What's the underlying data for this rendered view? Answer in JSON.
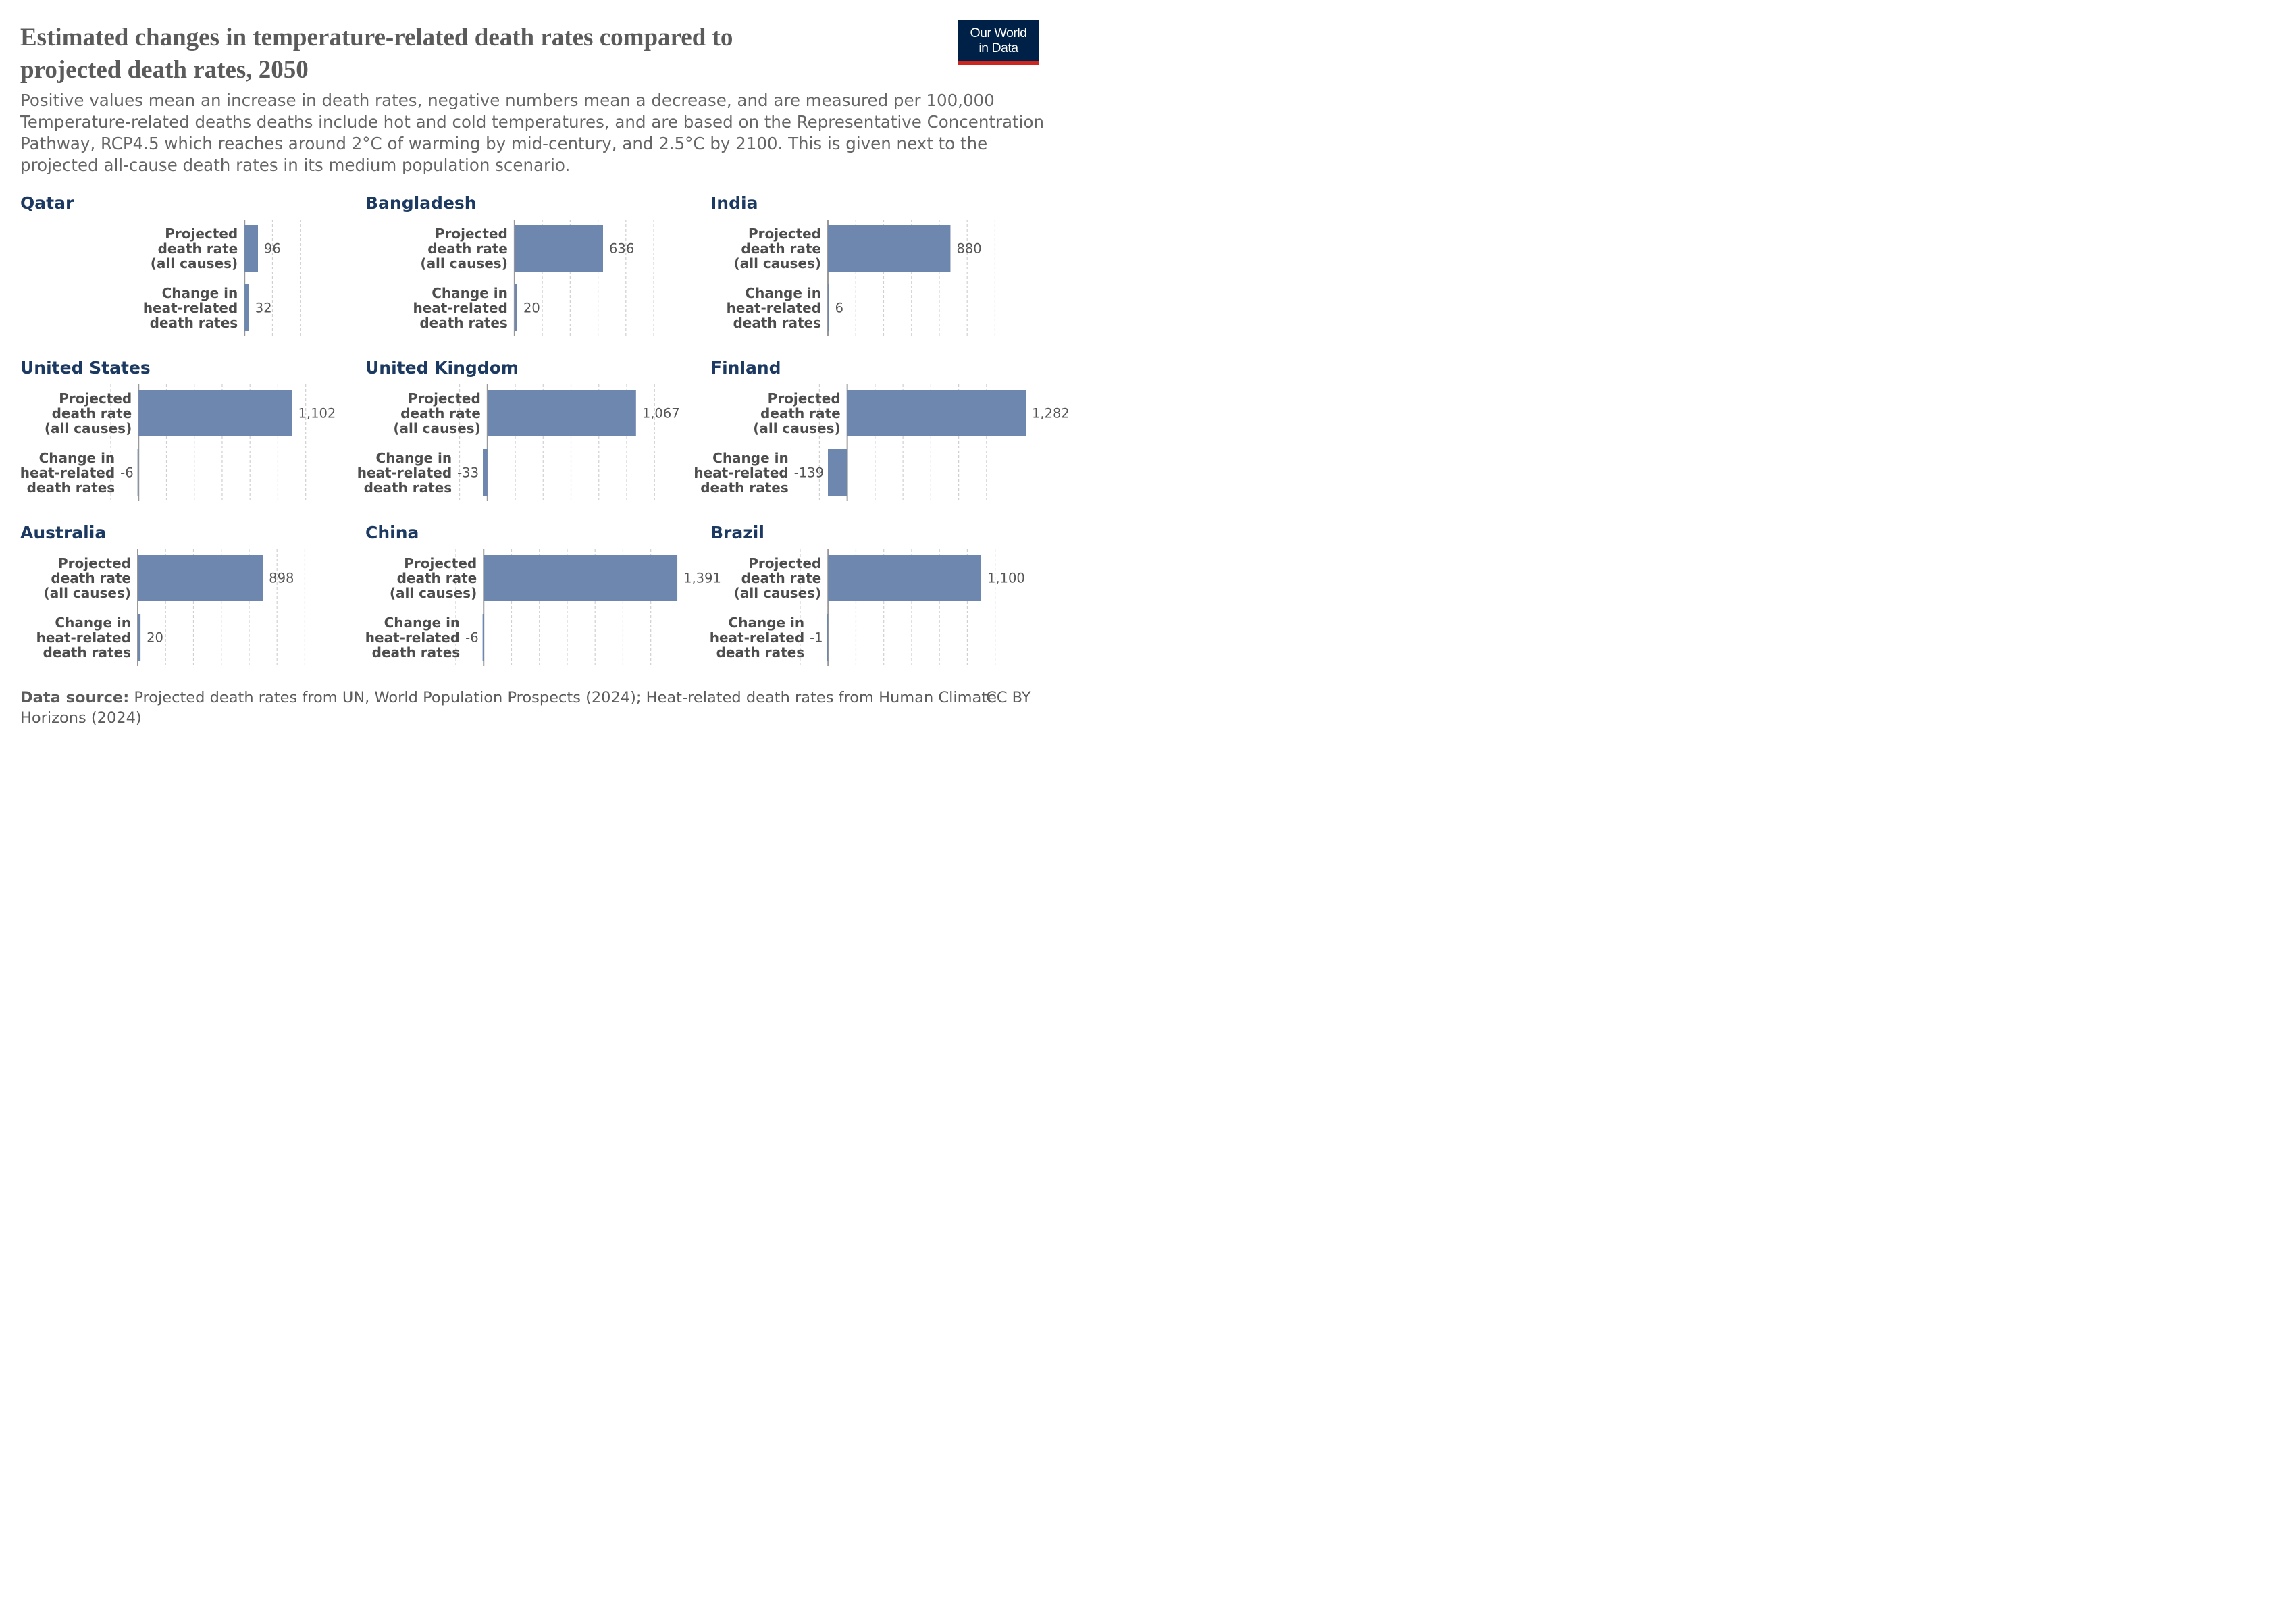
{
  "title": "Estimated changes in temperature-related death rates compared to projected death rates, 2050",
  "subtitle_lines": [
    "Positive values mean an increase in death rates, negative numbers mean a decrease, and are measured per 100,000",
    "Temperature-related deaths deaths include hot and cold temperatures, and are based on the Representative Concentration",
    "Pathway, RCP4.5 which reaches around 2°C of warming by mid-century, and 2.5°C by 2100. This is given next to the",
    "projected all-cause death rates in its medium population scenario."
  ],
  "logo": {
    "line1": "Our World",
    "line2": "in Data"
  },
  "footer": {
    "source_label": "Data source:",
    "source_text": "Projected death rates from UN, World Population Prospects (2024); Heat-related death rates from Human Climate Horizons (2024)",
    "license": "CC BY"
  },
  "colors": {
    "bar": "#6e87af",
    "country_title": "#1c3a61",
    "text": "#4d4d4d",
    "axis": "#999999",
    "grid": "#d0d0d0"
  },
  "chart_data": {
    "type": "bar",
    "orientation": "horizontal",
    "layout": "small-multiples",
    "categories": [
      "Projected death rate (all causes)",
      "Change in heat-related death rates"
    ],
    "category_lines": [
      [
        "Projected",
        "death rate",
        "(all causes)"
      ],
      [
        "Change in",
        "heat-related",
        "death rates"
      ]
    ],
    "panels": [
      {
        "country": "Qatar",
        "values": [
          96,
          32
        ],
        "labels": [
          "96",
          "32"
        ]
      },
      {
        "country": "Bangladesh",
        "values": [
          636,
          20
        ],
        "labels": [
          "636",
          "20"
        ]
      },
      {
        "country": "India",
        "values": [
          880,
          6
        ],
        "labels": [
          "880",
          "6"
        ]
      },
      {
        "country": "United States",
        "values": [
          1102,
          -6
        ],
        "labels": [
          "1,102",
          "-6"
        ]
      },
      {
        "country": "United Kingdom",
        "values": [
          1067,
          -33
        ],
        "labels": [
          "1,067",
          "-33"
        ]
      },
      {
        "country": "Finland",
        "values": [
          1282,
          -139
        ],
        "labels": [
          "1,282",
          "-139"
        ]
      },
      {
        "country": "Australia",
        "values": [
          898,
          20
        ],
        "labels": [
          "898",
          "20"
        ]
      },
      {
        "country": "China",
        "values": [
          1391,
          -6
        ],
        "labels": [
          "1,391",
          "-6"
        ]
      },
      {
        "country": "Brazil",
        "values": [
          1100,
          -1
        ],
        "labels": [
          "1,100",
          "-1"
        ]
      }
    ]
  }
}
